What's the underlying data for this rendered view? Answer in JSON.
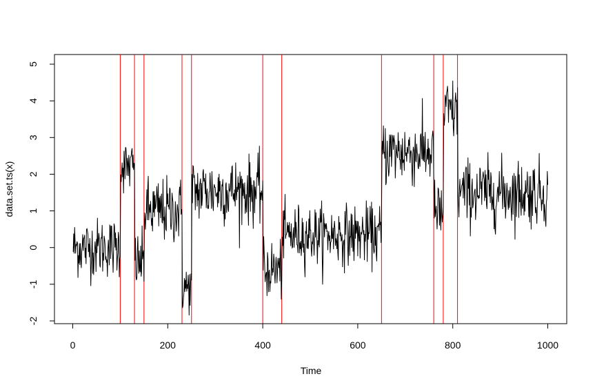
{
  "chart_data": {
    "type": "line",
    "title": "",
    "xlabel": "Time",
    "ylabel": "data.set.ts(x)",
    "xlim": [
      0,
      1000
    ],
    "ylim": [
      -2,
      5
    ],
    "x_ticks": [
      0,
      200,
      400,
      600,
      800,
      1000
    ],
    "y_ticks": [
      -2,
      -1,
      0,
      1,
      2,
      3,
      4,
      5
    ],
    "grid": false,
    "legend": "none",
    "series_color": "#000000",
    "changepoint_color": "#ff0000",
    "changepoints": [
      100,
      130,
      150,
      230,
      250,
      400,
      440,
      650,
      760,
      780,
      810
    ],
    "series_generator": {
      "n": 1000,
      "segments": [
        {
          "start": 1,
          "end": 100,
          "mean": 0.0,
          "sd": 0.4
        },
        {
          "start": 101,
          "end": 130,
          "mean": 2.2,
          "sd": 0.35
        },
        {
          "start": 131,
          "end": 150,
          "mean": -0.4,
          "sd": 0.4
        },
        {
          "start": 151,
          "end": 230,
          "mean": 1.0,
          "sd": 0.45
        },
        {
          "start": 231,
          "end": 250,
          "mean": -1.1,
          "sd": 0.35
        },
        {
          "start": 251,
          "end": 400,
          "mean": 1.55,
          "sd": 0.45
        },
        {
          "start": 401,
          "end": 440,
          "mean": -0.6,
          "sd": 0.4
        },
        {
          "start": 441,
          "end": 650,
          "mean": 0.35,
          "sd": 0.4
        },
        {
          "start": 651,
          "end": 760,
          "mean": 2.6,
          "sd": 0.45
        },
        {
          "start": 761,
          "end": 780,
          "mean": 0.9,
          "sd": 0.45
        },
        {
          "start": 781,
          "end": 810,
          "mean": 3.7,
          "sd": 0.45
        },
        {
          "start": 811,
          "end": 1000,
          "mean": 1.5,
          "sd": 0.45
        }
      ]
    }
  }
}
